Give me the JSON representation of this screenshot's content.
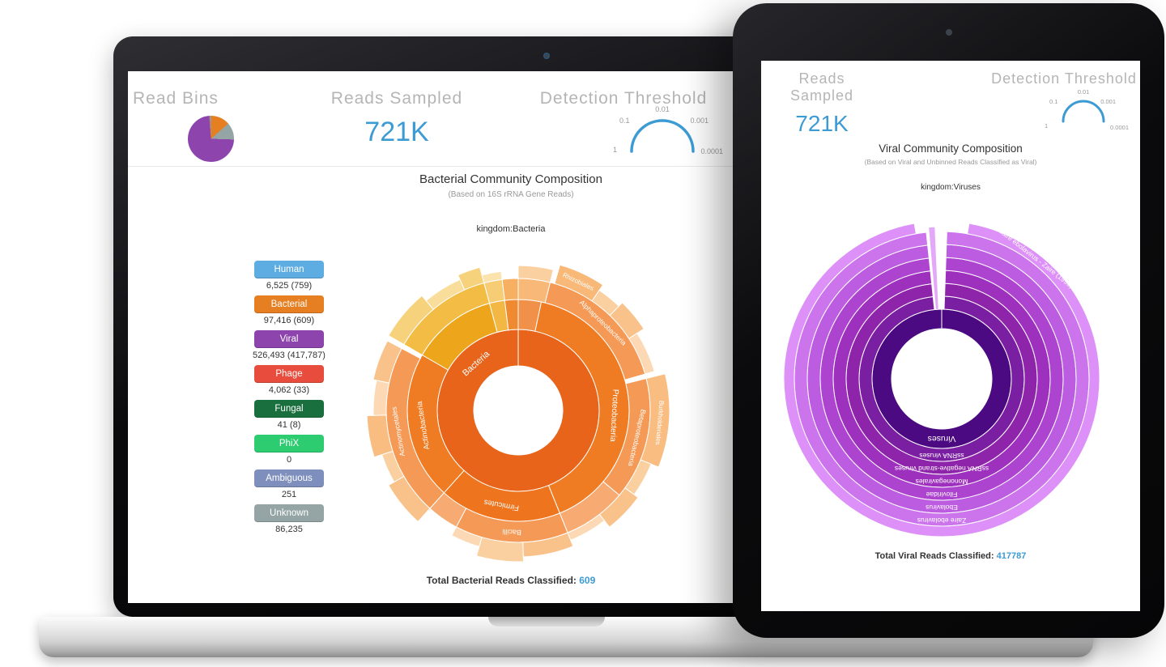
{
  "laptop": {
    "header": {
      "read_bins_label": "Read Bins",
      "reads_sampled_label": "Reads Sampled",
      "reads_sampled_value": "721K",
      "detection_threshold_label": "Detection Threshold",
      "gauge_labels": [
        "0.01",
        "0.1",
        "0.001",
        "1",
        "0.0001"
      ]
    },
    "title": "Bacterial Community Composition",
    "subtitle": "(Based on 16S rRNA Gene Reads)",
    "breadcrumb": "kingdom:Bacteria",
    "bins": [
      {
        "label": "Human",
        "color": "#5dade2",
        "count": "6,525 (759)"
      },
      {
        "label": "Bacterial",
        "color": "#e67e22",
        "count": "97,416 (609)"
      },
      {
        "label": "Viral",
        "color": "#8e44ad",
        "count": "526,493 (417,787)"
      },
      {
        "label": "Phage",
        "color": "#e74c3c",
        "count": "4,062 (33)"
      },
      {
        "label": "Fungal",
        "color": "#196f3d",
        "count": "41 (8)"
      },
      {
        "label": "PhiX",
        "color": "#2ecc71",
        "count": "0"
      },
      {
        "label": "Ambiguous",
        "color": "#7f8fbd",
        "count": "251"
      },
      {
        "label": "Unknown",
        "color": "#95a5a6",
        "count": "86,235"
      }
    ],
    "footer": {
      "label": "Total Bacterial Reads Classified:",
      "value": "609"
    }
  },
  "tablet": {
    "header": {
      "reads_sampled_label": "Reads Sampled",
      "reads_sampled_value": "721K",
      "detection_threshold_label": "Detection Threshold",
      "gauge_labels": [
        "0.01",
        "0.1",
        "0.001",
        "1",
        "0.0001"
      ]
    },
    "title": "Viral Community Composition",
    "subtitle": "(Based on Viral and Unbinned Reads Classified as Viral)",
    "breadcrumb": "kingdom:Viruses",
    "footer": {
      "label": "Total Viral Reads Classified:",
      "value": "417787"
    }
  },
  "chart_data": [
    {
      "type": "pie",
      "name": "read-bins",
      "title": "Read Bins",
      "slices": [
        {
          "label": "Bacterial",
          "color": "#e67e22",
          "pct": 13.5
        },
        {
          "label": "Unknown",
          "color": "#95a5a6",
          "pct": 12.0
        },
        {
          "label": "Viral",
          "color": "#8e44ad",
          "pct": 73.0
        },
        {
          "label": "Phage",
          "color": "#e74c3c",
          "pct": 0.6
        },
        {
          "label": "Human",
          "color": "#5dade2",
          "pct": 0.9
        }
      ]
    },
    {
      "type": "gauge",
      "name": "detection-threshold",
      "title": "Detection Threshold",
      "tick_labels": [
        "0.01",
        "0.1",
        "0.001",
        "1",
        "0.0001"
      ],
      "color": "#3d9bd4"
    },
    {
      "type": "sunburst",
      "name": "bacterial-composition",
      "title": "Bacterial Community Composition",
      "root": "kingdom:Bacteria",
      "total_reads_classified": 609,
      "rings": [
        [
          55,
          100
        ],
        [
          100,
          137
        ],
        [
          137,
          163
        ],
        [
          163,
          187
        ]
      ],
      "segments": [
        {
          "level": 0,
          "a0": 0,
          "a1": 360,
          "color": "#e8641b",
          "label": "Bacteria",
          "labelAngle": 318,
          "labelSize": 11
        },
        {
          "level": 1,
          "a0": 12,
          "a1": 158,
          "color": "#ef7c23",
          "label": "Proteobacteria",
          "labelAngle": 93,
          "labelSize": 10
        },
        {
          "level": 1,
          "a0": 158,
          "a1": 222,
          "color": "#ee751d",
          "label": "Firmicutes",
          "labelAngle": 190,
          "labelSize": 9.5
        },
        {
          "level": 1,
          "a0": 222,
          "a1": 300,
          "color": "#ef7c23",
          "label": "Actinobacteria",
          "labelAngle": 261,
          "labelSize": 9.5
        },
        {
          "level": 1,
          "a0": 300,
          "a1": 345,
          "color": "#eda61c"
        },
        {
          "level": 1,
          "a0": 345,
          "a1": 353,
          "color": "#f2b843"
        },
        {
          "level": 1,
          "a0": 353,
          "a1": 360,
          "color": "#f08a30"
        },
        {
          "level": 1,
          "a0": 0,
          "a1": 12,
          "color": "#f19048"
        },
        {
          "level": 2,
          "a0": 14,
          "a1": 74,
          "color": "#f59a56",
          "label": "Alphaproteobacteria",
          "labelAngle": 44,
          "labelSize": 8.5
        },
        {
          "level": 2,
          "a0": 76,
          "a1": 130,
          "color": "#f59a56",
          "label": "Betaproteobacteria",
          "labelAngle": 103,
          "labelSize": 8.5
        },
        {
          "level": 2,
          "a0": 130,
          "a1": 158,
          "color": "#f7ab72"
        },
        {
          "level": 2,
          "a0": 158,
          "a1": 208,
          "color": "#f59a56",
          "label": "Bacilli",
          "labelAngle": 183,
          "labelSize": 9
        },
        {
          "level": 2,
          "a0": 208,
          "a1": 222,
          "color": "#f7ab72"
        },
        {
          "level": 2,
          "a0": 222,
          "a1": 298,
          "color": "#f59a56",
          "label": "Actinomycetales",
          "labelAngle": 260,
          "labelSize": 8.5
        },
        {
          "level": 2,
          "a0": 300,
          "a1": 345,
          "color": "#f2bc45"
        },
        {
          "level": 2,
          "a0": 345,
          "a1": 353,
          "color": "#f6cd74"
        },
        {
          "level": 2,
          "a0": 353,
          "a1": 360,
          "color": "#f7b061"
        },
        {
          "level": 2,
          "a0": 0,
          "a1": 14,
          "color": "#f8b877"
        },
        {
          "level": 3,
          "a0": 16,
          "a1": 34,
          "color": "#f8b877",
          "label": "Rhizobiales",
          "labelAngle": 25,
          "labelSize": 8,
          "r1": 187
        },
        {
          "level": 3,
          "a0": 34,
          "a1": 44,
          "color": "#fbd0a0",
          "r1": 179
        },
        {
          "level": 3,
          "a0": 44,
          "a1": 57,
          "color": "#f9c28a",
          "r1": 185
        },
        {
          "level": 3,
          "a0": 57,
          "a1": 74,
          "color": "#fcd9b4",
          "r1": 175
        },
        {
          "level": 3,
          "a0": 76,
          "a1": 112,
          "color": "#f9bd82",
          "label": "Burkholderiales",
          "labelAngle": 95,
          "labelSize": 8,
          "r1": 187
        },
        {
          "level": 3,
          "a0": 112,
          "a1": 126,
          "color": "#fbd0a0",
          "r1": 177
        },
        {
          "level": 3,
          "a0": 126,
          "a1": 142,
          "color": "#f9c28a",
          "r1": 183
        },
        {
          "level": 3,
          "a0": 142,
          "a1": 158,
          "color": "#fcd9b4",
          "r1": 173
        },
        {
          "level": 3,
          "a0": 158,
          "a1": 178,
          "color": "#f9c28a",
          "r1": 181
        },
        {
          "level": 3,
          "a0": 178,
          "a1": 196,
          "color": "#fbd0a0",
          "r1": 187
        },
        {
          "level": 3,
          "a0": 196,
          "a1": 208,
          "color": "#fcd9b4",
          "r1": 175
        },
        {
          "level": 3,
          "a0": 222,
          "a1": 240,
          "color": "#f9c28a",
          "r1": 185
        },
        {
          "level": 3,
          "a0": 240,
          "a1": 252,
          "color": "#fbd0a0",
          "r1": 177
        },
        {
          "level": 3,
          "a0": 252,
          "a1": 268,
          "color": "#f9bd82",
          "r1": 187
        },
        {
          "level": 3,
          "a0": 268,
          "a1": 282,
          "color": "#fcd9b4",
          "r1": 179
        },
        {
          "level": 3,
          "a0": 282,
          "a1": 298,
          "color": "#f9c28a",
          "r1": 183
        },
        {
          "level": 3,
          "a0": 300,
          "a1": 320,
          "color": "#f7d27d",
          "r1": 185
        },
        {
          "level": 3,
          "a0": 320,
          "a1": 336,
          "color": "#f9dd9b",
          "r1": 177
        },
        {
          "level": 3,
          "a0": 336,
          "a1": 345,
          "color": "#f7d27d",
          "r1": 183
        },
        {
          "level": 3,
          "a0": 345,
          "a1": 353,
          "color": "#fbe3ae",
          "r1": 173
        },
        {
          "level": 3,
          "a0": 0,
          "a1": 14,
          "color": "#fbd0a0",
          "r1": 179
        }
      ]
    },
    {
      "type": "sunburst",
      "name": "viral-composition",
      "title": "Viral Community Composition",
      "root": "kingdom:Viruses",
      "total_reads_classified": 417787,
      "rings": [
        [
          62,
          86
        ],
        [
          86,
          102
        ],
        [
          102,
          118
        ],
        [
          118,
          134
        ],
        [
          134,
          150
        ],
        [
          150,
          166
        ],
        [
          166,
          182
        ],
        [
          182,
          195
        ]
      ],
      "segments": [
        {
          "level": 0,
          "a0": 0,
          "a1": 360,
          "color": "#4c0a82",
          "label": "Viruses",
          "labelAngle": 180,
          "labelSize": 10.5
        },
        {
          "level": 1,
          "a0": 2,
          "a1": 354,
          "color": "#7b1fa2",
          "label": "ssRNA viruses",
          "labelAngle": 180,
          "labelSize": 8.5
        },
        {
          "level": 2,
          "a0": 2,
          "a1": 354,
          "color": "#8e24aa",
          "label": "ssRNA negative-strand viruses",
          "labelAngle": 180,
          "labelSize": 8.5
        },
        {
          "level": 3,
          "a0": 2,
          "a1": 354,
          "color": "#9d30bd",
          "label": "Mononegavirales",
          "labelAngle": 180,
          "labelSize": 8.5
        },
        {
          "level": 4,
          "a0": 2,
          "a1": 354,
          "color": "#ad44d0",
          "label": "Filoviridae",
          "labelAngle": 180,
          "labelSize": 8.5
        },
        {
          "level": 5,
          "a0": 2,
          "a1": 354,
          "color": "#bc5ce0",
          "label": "Ebolavirus",
          "labelAngle": 180,
          "labelSize": 8.5
        },
        {
          "level": 6,
          "a0": 2,
          "a1": 354,
          "color": "#cb74ec",
          "label": "Zaire ebolavirus",
          "labelAngle": 180,
          "labelSize": 8.5
        },
        {
          "level": 7,
          "a0": 10,
          "a1": 350,
          "color": "#dd90f7",
          "label": "Zaire ebolavirus - Zaire (1995)",
          "labelAngle": 38,
          "labelSize": 8.5
        },
        {
          "level": 1,
          "a0": 355,
          "a1": 357.5,
          "color": "#e3a9f8",
          "r0": 86,
          "r1": 188
        }
      ]
    }
  ]
}
